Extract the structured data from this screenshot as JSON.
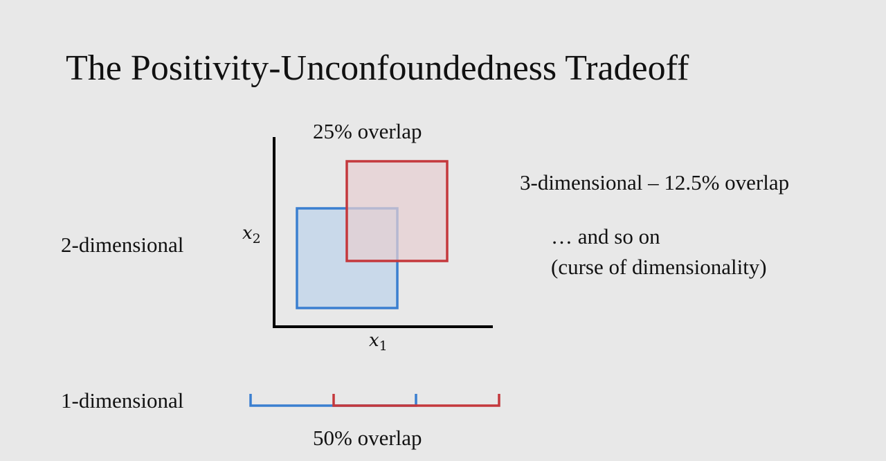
{
  "title": "The Positivity-Unconfoundedness Tradeoff",
  "two_dim": {
    "row_label": "2-dimensional",
    "overlap_label": "25% overlap",
    "axis_x_var": "x",
    "axis_x_sub": "1",
    "axis_y_var": "x",
    "axis_y_sub": "2",
    "overlap_fraction": 0.25,
    "boxes": [
      {
        "color": "#3a7fd0",
        "x_range": [
          0,
          1
        ],
        "y_range": [
          0,
          1
        ]
      },
      {
        "color": "#c4383c",
        "x_range": [
          0.5,
          1.5
        ],
        "y_range": [
          0.5,
          1.5
        ]
      }
    ]
  },
  "one_dim": {
    "row_label": "1-dimensional",
    "overlap_label": "50% overlap",
    "overlap_fraction": 0.5,
    "intervals": [
      {
        "color": "#3a7fd0",
        "range": [
          0,
          1
        ]
      },
      {
        "color": "#c4383c",
        "range": [
          0.5,
          1.5
        ]
      }
    ]
  },
  "three_dim_label": "3-dimensional – 12.5% overlap",
  "and_so_on": "… and so on",
  "curse_note": "(curse of dimensionality)",
  "colors": {
    "blue": "#3a7fd0",
    "red": "#c4383c",
    "blue_fill": "#c9d9ea",
    "red_fill": "#e6cfd1",
    "background": "#e8e8e8"
  }
}
